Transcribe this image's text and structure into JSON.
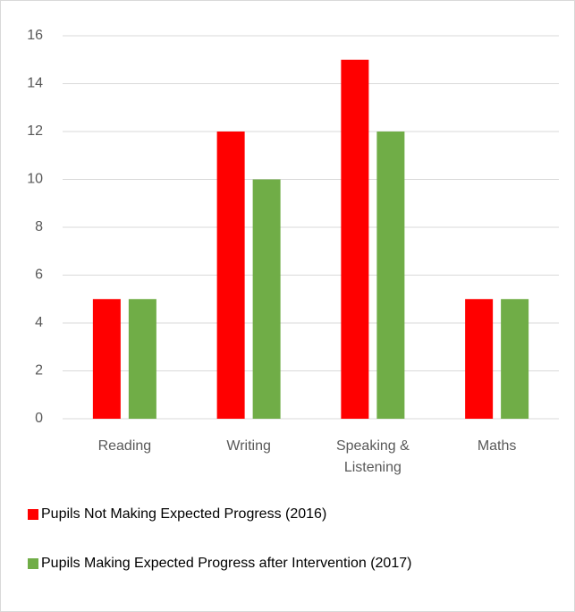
{
  "chart_data": {
    "type": "bar",
    "categories": [
      "Reading",
      "Writing",
      "Speaking & Listening",
      "Maths"
    ],
    "series": [
      {
        "name": "Pupils Not Making Expected Progress (2016)",
        "color": "#ff0000",
        "values": [
          5,
          12,
          15,
          5
        ]
      },
      {
        "name": "Pupils Making Expected Progress after Intervention (2017)",
        "color": "#70ad47",
        "values": [
          5,
          10,
          12,
          5
        ]
      }
    ],
    "ylim": [
      0,
      16
    ],
    "yticks": [
      0,
      2,
      4,
      6,
      8,
      10,
      12,
      14,
      16
    ],
    "grid": true,
    "legend": "bottom"
  }
}
